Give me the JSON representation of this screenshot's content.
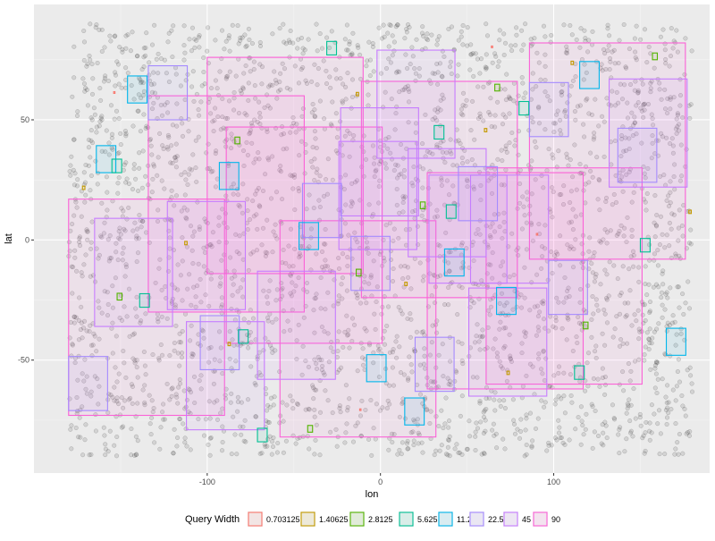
{
  "chart_data": {
    "type": "scatter",
    "xlabel": "lon",
    "ylabel": "lat",
    "xlim": [
      -200,
      190
    ],
    "ylim": [
      -97,
      98
    ],
    "x_ticks": [
      -100,
      0,
      100
    ],
    "x_tick_labels": [
      "-100",
      "0",
      "100"
    ],
    "y_ticks": [
      -50,
      0,
      50
    ],
    "y_tick_labels": [
      "-50",
      "0",
      "50"
    ],
    "grid": true,
    "background_points": {
      "description_count": 3000,
      "lon_range": [
        -180,
        180
      ],
      "lat_range": [
        -90,
        90
      ],
      "color": "#000000"
    },
    "legend": {
      "title": "Query Width",
      "position": "bottom",
      "entries": [
        {
          "label": "0.703125",
          "color": "#F8766D"
        },
        {
          "label": "1.40625",
          "color": "#C49A00"
        },
        {
          "label": "2.8125",
          "color": "#53B400"
        },
        {
          "label": "5.625",
          "color": "#00C094"
        },
        {
          "label": "11.25",
          "color": "#00B6EB"
        },
        {
          "label": "22.5",
          "color": "#A58AFF"
        },
        {
          "label": "45",
          "color": "#C77CFF"
        },
        {
          "label": "90",
          "color": "#FB61D7"
        }
      ]
    },
    "query_boxes": [
      {
        "w": 90,
        "lon": [
          -180,
          -90
        ],
        "lat": [
          -73,
          17
        ]
      },
      {
        "w": 90,
        "lon": [
          -134,
          -44
        ],
        "lat": [
          -30,
          60
        ]
      },
      {
        "w": 90,
        "lon": [
          -100,
          -10
        ],
        "lat": [
          -14,
          76
        ]
      },
      {
        "w": 90,
        "lon": [
          -89,
          1
        ],
        "lat": [
          -43,
          47
        ]
      },
      {
        "w": 90,
        "lon": [
          -11,
          79
        ],
        "lat": [
          -24,
          66
        ]
      },
      {
        "w": 90,
        "lon": [
          -58,
          32
        ],
        "lat": [
          -82,
          8
        ]
      },
      {
        "w": 90,
        "lon": [
          27,
          117
        ],
        "lat": [
          -62,
          28
        ]
      },
      {
        "w": 90,
        "lon": [
          86,
          176
        ],
        "lat": [
          -8,
          82
        ]
      },
      {
        "w": 90,
        "lon": [
          61,
          151
        ],
        "lat": [
          -60,
          30
        ]
      },
      {
        "w": 45,
        "lon": [
          -165,
          -120
        ],
        "lat": [
          -36,
          9
        ]
      },
      {
        "w": 45,
        "lon": [
          -123,
          -78
        ],
        "lat": [
          -29,
          16
        ]
      },
      {
        "w": 45,
        "lon": [
          -112,
          -67
        ],
        "lat": [
          -79,
          -34
        ]
      },
      {
        "w": 45,
        "lon": [
          -71,
          -26
        ],
        "lat": [
          -58,
          -13
        ]
      },
      {
        "w": 45,
        "lon": [
          -24,
          21
        ],
        "lat": [
          -4,
          41
        ]
      },
      {
        "w": 45,
        "lon": [
          -23,
          22
        ],
        "lat": [
          10,
          55
        ]
      },
      {
        "w": 45,
        "lon": [
          -2,
          43
        ],
        "lat": [
          34,
          79
        ]
      },
      {
        "w": 45,
        "lon": [
          16,
          61
        ],
        "lat": [
          -7,
          38
        ]
      },
      {
        "w": 45,
        "lon": [
          28,
          73
        ],
        "lat": [
          -18,
          27
        ]
      },
      {
        "w": 45,
        "lon": [
          52,
          97
        ],
        "lat": [
          -18,
          27
        ]
      },
      {
        "w": 45,
        "lon": [
          51,
          96
        ],
        "lat": [
          -65,
          -20
        ]
      },
      {
        "w": 45,
        "lon": [
          132,
          177
        ],
        "lat": [
          22,
          67
        ]
      },
      {
        "w": 22.5,
        "lon": [
          -180,
          -157.5
        ],
        "lat": [
          -71,
          -48.5
        ]
      },
      {
        "w": 22.5,
        "lon": [
          -134,
          -111.5
        ],
        "lat": [
          50,
          72.5
        ]
      },
      {
        "w": 22.5,
        "lon": [
          -104,
          -81.5
        ],
        "lat": [
          -54,
          -31.5
        ]
      },
      {
        "w": 22.5,
        "lon": [
          -45,
          -22.5
        ],
        "lat": [
          1,
          23.5
        ]
      },
      {
        "w": 22.5,
        "lon": [
          -17,
          5.5
        ],
        "lat": [
          -21,
          1.5
        ]
      },
      {
        "w": 22.5,
        "lon": [
          20,
          42.5
        ],
        "lat": [
          -63,
          -40.5
        ]
      },
      {
        "w": 22.5,
        "lon": [
          45,
          67.5
        ],
        "lat": [
          8,
          30.5
        ]
      },
      {
        "w": 22.5,
        "lon": [
          97,
          119.5
        ],
        "lat": [
          -31,
          -8.5
        ]
      },
      {
        "w": 22.5,
        "lon": [
          86,
          108.5
        ],
        "lat": [
          43,
          65.5
        ]
      },
      {
        "w": 22.5,
        "lon": [
          137,
          159.5
        ],
        "lat": [
          24,
          46.5
        ]
      },
      {
        "w": 11.25,
        "lon": [
          -146,
          -134.75
        ],
        "lat": [
          57,
          68.25
        ]
      },
      {
        "w": 11.25,
        "lon": [
          -164,
          -152.75
        ],
        "lat": [
          28,
          39.25
        ]
      },
      {
        "w": 11.25,
        "lon": [
          -93,
          -81.75
        ],
        "lat": [
          21,
          32.25
        ]
      },
      {
        "w": 11.25,
        "lon": [
          -47,
          -35.75
        ],
        "lat": [
          -4,
          7.25
        ]
      },
      {
        "w": 11.25,
        "lon": [
          -8,
          3.25
        ],
        "lat": [
          -59,
          -47.75
        ]
      },
      {
        "w": 11.25,
        "lon": [
          14,
          25.25
        ],
        "lat": [
          -77,
          -65.75
        ]
      },
      {
        "w": 11.25,
        "lon": [
          37,
          48.25
        ],
        "lat": [
          -15,
          -3.75
        ]
      },
      {
        "w": 11.25,
        "lon": [
          67,
          78.25
        ],
        "lat": [
          -31,
          -19.75
        ]
      },
      {
        "w": 11.25,
        "lon": [
          115,
          126.25
        ],
        "lat": [
          63,
          74.25
        ]
      },
      {
        "w": 11.25,
        "lon": [
          165,
          176.25
        ],
        "lat": [
          -48,
          -36.75
        ]
      },
      {
        "w": 5.625,
        "lon": [
          -155,
          -149.375
        ],
        "lat": [
          28,
          33.625
        ]
      },
      {
        "w": 5.625,
        "lon": [
          -139,
          -133.375
        ],
        "lat": [
          -28,
          -22.375
        ]
      },
      {
        "w": 5.625,
        "lon": [
          -82,
          -76.375
        ],
        "lat": [
          -43,
          -37.375
        ]
      },
      {
        "w": 5.625,
        "lon": [
          -71,
          -65.375
        ],
        "lat": [
          -84,
          -78.375
        ]
      },
      {
        "w": 5.625,
        "lon": [
          -31,
          -25.375
        ],
        "lat": [
          77,
          82.625
        ]
      },
      {
        "w": 5.625,
        "lon": [
          31,
          36.625
        ],
        "lat": [
          42,
          47.625
        ]
      },
      {
        "w": 5.625,
        "lon": [
          38,
          43.625
        ],
        "lat": [
          9,
          14.625
        ]
      },
      {
        "w": 5.625,
        "lon": [
          80,
          85.625
        ],
        "lat": [
          52,
          57.625
        ]
      },
      {
        "w": 5.625,
        "lon": [
          112,
          117.625
        ],
        "lat": [
          -58,
          -52.375
        ]
      },
      {
        "w": 5.625,
        "lon": [
          150,
          155.625
        ],
        "lat": [
          -5,
          0.625
        ]
      },
      {
        "w": 2.8125,
        "lon": [
          -84,
          -81.1875
        ],
        "lat": [
          40,
          42.8125
        ]
      },
      {
        "w": 2.8125,
        "lon": [
          -14,
          -11.1875
        ],
        "lat": [
          -15,
          -12.1875
        ]
      },
      {
        "w": 2.8125,
        "lon": [
          23,
          25.8125
        ],
        "lat": [
          13,
          15.8125
        ]
      },
      {
        "w": 2.8125,
        "lon": [
          66,
          68.8125
        ],
        "lat": [
          62,
          64.8125
        ]
      },
      {
        "w": 2.8125,
        "lon": [
          157,
          159.8125
        ],
        "lat": [
          75,
          77.8125
        ]
      },
      {
        "w": 2.8125,
        "lon": [
          -152,
          -149.1875
        ],
        "lat": [
          -25,
          -22.1875
        ]
      },
      {
        "w": 2.8125,
        "lon": [
          -42,
          -39.1875
        ],
        "lat": [
          -80,
          -77.1875
        ]
      },
      {
        "w": 2.8125,
        "lon": [
          117,
          119.8125
        ],
        "lat": [
          -37,
          -34.1875
        ]
      },
      {
        "w": 1.40625,
        "lon": [
          -172,
          -170.59375
        ],
        "lat": [
          21,
          22.40625
        ]
      },
      {
        "w": 1.40625,
        "lon": [
          -113,
          -111.59375
        ],
        "lat": [
          -2,
          -0.59375
        ]
      },
      {
        "w": 1.40625,
        "lon": [
          -14,
          -12.59375
        ],
        "lat": [
          60,
          61.40625
        ]
      },
      {
        "w": 1.40625,
        "lon": [
          60,
          61.40625
        ],
        "lat": [
          45,
          46.40625
        ]
      },
      {
        "w": 1.40625,
        "lon": [
          110,
          111.40625
        ],
        "lat": [
          73,
          74.40625
        ]
      },
      {
        "w": 1.40625,
        "lon": [
          178,
          179.40625
        ],
        "lat": [
          11,
          12.40625
        ]
      },
      {
        "w": 1.40625,
        "lon": [
          73,
          74.40625
        ],
        "lat": [
          -56,
          -54.59375
        ]
      },
      {
        "w": 1.40625,
        "lon": [
          -88,
          -86.59375
        ],
        "lat": [
          -44,
          -42.59375
        ]
      },
      {
        "w": 1.40625,
        "lon": [
          14,
          15.40625
        ],
        "lat": [
          -19,
          -17.59375
        ]
      },
      {
        "w": 0.703125,
        "lon": [
          -12,
          -11.296875
        ],
        "lat": [
          -71,
          -70.296875
        ]
      },
      {
        "w": 0.703125,
        "lon": [
          90,
          90.703125
        ],
        "lat": [
          2,
          2.703125
        ]
      },
      {
        "w": 0.703125,
        "lon": [
          -154,
          -153.296875
        ],
        "lat": [
          61,
          61.703125
        ]
      },
      {
        "w": 0.703125,
        "lon": [
          64,
          64.703125
        ],
        "lat": [
          80,
          80.703125
        ]
      }
    ]
  }
}
